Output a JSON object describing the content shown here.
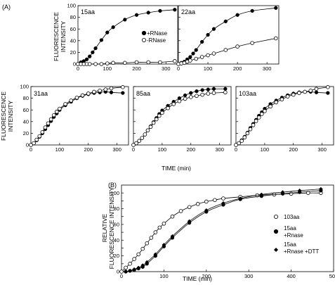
{
  "panel_labels": {
    "a": "(A)",
    "b": "(B)"
  },
  "axis_text": {
    "fluor_line1": "FLUORESCENCE",
    "fluor_line2": "INTENSITY",
    "rel_line1": "RELATIVE",
    "rel_line2": "FLUORESCENCE INTENSITY",
    "time": "TIME (min)"
  },
  "legend_a": {
    "filled": "+RNase",
    "open": "-RNase"
  },
  "legend_b": {
    "open": "103aa",
    "filled_line1": "15aa",
    "filled_line2": "+Rnase",
    "diamond_line1": "15aa",
    "diamond_line2": "+Rnase +DTT"
  },
  "chart_data": [
    {
      "type": "scatter",
      "title": "15aa",
      "xlim": [
        0,
        340
      ],
      "ylim": [
        0,
        100
      ],
      "xticks": [
        0,
        100,
        200,
        300
      ],
      "yticks": [
        0,
        20,
        40,
        60,
        80,
        100
      ],
      "series": [
        {
          "name": "+RNase",
          "marker": "filled",
          "x": [
            0,
            10,
            20,
            30,
            40,
            50,
            60,
            80,
            100,
            120,
            160,
            200,
            240,
            280,
            330
          ],
          "y": [
            0,
            3,
            5,
            8,
            13,
            20,
            27,
            41,
            54,
            63,
            76,
            84,
            88,
            91,
            93
          ]
        },
        {
          "name": "-RNase",
          "marker": "open",
          "x": [
            0,
            10,
            20,
            30,
            40,
            60,
            80,
            100,
            120,
            160,
            200,
            240,
            280,
            330
          ],
          "y": [
            0,
            0,
            0,
            0,
            0,
            0,
            0,
            1,
            2,
            2,
            3,
            3,
            3,
            5
          ]
        }
      ]
    },
    {
      "type": "scatter",
      "title": "22aa",
      "xlim": [
        0,
        340
      ],
      "ylim": [
        0,
        100
      ],
      "xticks": [
        0,
        100,
        200,
        300
      ],
      "yticks": [
        0,
        20,
        40,
        60,
        80,
        100
      ],
      "series": [
        {
          "name": "+RNase",
          "marker": "filled",
          "x": [
            0,
            10,
            20,
            30,
            40,
            50,
            60,
            80,
            100,
            120,
            160,
            200,
            250,
            330
          ],
          "y": [
            0,
            2,
            4,
            8,
            12,
            18,
            24,
            38,
            50,
            60,
            73,
            84,
            91,
            96
          ]
        },
        {
          "name": "-RNase",
          "marker": "open",
          "x": [
            0,
            10,
            20,
            30,
            40,
            60,
            80,
            100,
            120,
            160,
            200,
            250,
            330
          ],
          "y": [
            0,
            1,
            2,
            4,
            6,
            9,
            12,
            15,
            18,
            24,
            30,
            36,
            44
          ]
        }
      ]
    },
    {
      "type": "scatter",
      "title": "31aa",
      "xlim": [
        0,
        340
      ],
      "ylim": [
        0,
        100
      ],
      "xticks": [
        0,
        100,
        200,
        300
      ],
      "yticks": [
        0,
        20,
        40,
        60,
        80,
        100
      ],
      "series": [
        {
          "name": "filled",
          "marker": "filled",
          "x": [
            0,
            10,
            20,
            30,
            40,
            50,
            60,
            70,
            80,
            90,
            100,
            120,
            140,
            160,
            180,
            200,
            220,
            240,
            260,
            280,
            320
          ],
          "y": [
            0,
            3,
            8,
            14,
            20,
            27,
            34,
            41,
            48,
            54,
            60,
            68,
            74,
            80,
            84,
            87,
            89,
            90,
            91,
            90,
            89
          ]
        },
        {
          "name": "open",
          "marker": "open",
          "x": [
            0,
            10,
            20,
            30,
            40,
            50,
            60,
            70,
            80,
            90,
            100,
            120,
            140,
            160,
            180,
            200,
            220,
            240,
            260,
            280,
            320
          ],
          "y": [
            0,
            3,
            9,
            15,
            22,
            30,
            37,
            44,
            51,
            57,
            62,
            70,
            76,
            81,
            85,
            88,
            91,
            93,
            95,
            97,
            99
          ]
        }
      ]
    },
    {
      "type": "scatter",
      "title": "85aa",
      "xlim": [
        0,
        340
      ],
      "ylim": [
        0,
        100
      ],
      "xticks": [
        0,
        100,
        200,
        300
      ],
      "yticks": [
        0,
        20,
        40,
        60,
        80,
        100
      ],
      "series": [
        {
          "name": "filled",
          "marker": "filled",
          "x": [
            0,
            10,
            20,
            30,
            40,
            50,
            60,
            70,
            80,
            90,
            100,
            120,
            140,
            160,
            180,
            200,
            220,
            240,
            260,
            280,
            320
          ],
          "y": [
            0,
            3,
            7,
            12,
            18,
            25,
            32,
            39,
            46,
            53,
            59,
            67,
            74,
            80,
            85,
            89,
            92,
            94,
            95,
            96,
            96
          ]
        },
        {
          "name": "open",
          "marker": "open",
          "x": [
            0,
            10,
            20,
            30,
            40,
            50,
            60,
            70,
            80,
            90,
            100,
            120,
            140,
            160,
            180,
            200,
            220,
            240,
            260,
            280,
            320
          ],
          "y": [
            0,
            3,
            7,
            12,
            18,
            25,
            31,
            38,
            44,
            50,
            55,
            63,
            70,
            75,
            79,
            82,
            84,
            86,
            88,
            89,
            90
          ]
        }
      ]
    },
    {
      "type": "scatter",
      "title": "103aa",
      "xlim": [
        0,
        340
      ],
      "ylim": [
        0,
        100
      ],
      "xticks": [
        0,
        100,
        200,
        300
      ],
      "yticks": [
        0,
        20,
        40,
        60,
        80,
        100
      ],
      "series": [
        {
          "name": "filled",
          "marker": "filled",
          "x": [
            0,
            10,
            20,
            30,
            40,
            50,
            60,
            70,
            80,
            90,
            100,
            120,
            140,
            160,
            180,
            200,
            220,
            240,
            260,
            280,
            320
          ],
          "y": [
            0,
            3,
            8,
            14,
            21,
            29,
            36,
            43,
            50,
            56,
            62,
            70,
            76,
            81,
            85,
            88,
            90,
            91,
            91,
            90,
            89
          ]
        },
        {
          "name": "open",
          "marker": "open",
          "x": [
            0,
            10,
            20,
            30,
            40,
            50,
            60,
            70,
            80,
            90,
            100,
            120,
            140,
            160,
            180,
            200,
            220,
            240,
            260,
            280,
            320
          ],
          "y": [
            0,
            3,
            7,
            13,
            20,
            27,
            34,
            41,
            47,
            53,
            58,
            66,
            73,
            78,
            83,
            86,
            89,
            91,
            93,
            96,
            99
          ]
        }
      ]
    },
    {
      "type": "scatter",
      "title": "",
      "xlim": [
        0,
        500
      ],
      "ylim": [
        0,
        110
      ],
      "xticks": [
        0,
        100,
        200,
        300,
        400,
        500
      ],
      "yticks": [
        0,
        10,
        20,
        30,
        40,
        50,
        60,
        70,
        80,
        90,
        100
      ],
      "series": [
        {
          "name": "103aa",
          "marker": "open",
          "x": [
            0,
            10,
            20,
            30,
            40,
            50,
            60,
            70,
            80,
            90,
            100,
            120,
            140,
            160,
            180,
            200,
            220,
            240,
            280,
            320,
            360,
            400,
            440,
            470
          ],
          "y": [
            0,
            5,
            10,
            16,
            22,
            29,
            36,
            43,
            50,
            56,
            61,
            70,
            77,
            82,
            86,
            89,
            91,
            93,
            95,
            97,
            98,
            99,
            100,
            100
          ]
        },
        {
          "name": "15aa +Rnase",
          "marker": "filled",
          "x": [
            10,
            20,
            30,
            40,
            50,
            60,
            80,
            100,
            120,
            160,
            200,
            240,
            280,
            330,
            380,
            420,
            470
          ],
          "y": [
            0,
            1,
            2,
            4,
            6,
            10,
            20,
            32,
            43,
            62,
            76,
            85,
            92,
            96,
            99,
            101,
            103
          ]
        },
        {
          "name": "15aa +Rnase +DTT",
          "marker": "diamond",
          "x": [
            10,
            20,
            30,
            40,
            50,
            60,
            80,
            100,
            120,
            160,
            200,
            240,
            280,
            330,
            380,
            420,
            470
          ],
          "y": [
            0,
            1,
            3,
            5,
            8,
            12,
            22,
            34,
            45,
            64,
            78,
            87,
            93,
            98,
            101,
            103,
            105
          ]
        }
      ]
    }
  ]
}
